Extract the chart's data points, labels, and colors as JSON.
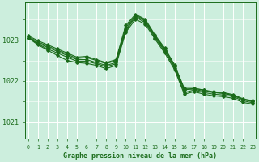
{
  "bg_color": "#cceedd",
  "plot_bg_color": "#cceedd",
  "line_color": "#1a6b1a",
  "grid_color": "#ffffff",
  "xlabel": "Graphe pression niveau de la mer (hPa)",
  "xlabel_color": "#1a6b1a",
  "tick_color": "#1a6b1a",
  "ylim": [
    1020.6,
    1023.9
  ],
  "xlim": [
    -0.3,
    23.3
  ],
  "yticks": [
    1021,
    1022,
    1023
  ],
  "xtick_labels": [
    "0",
    "1",
    "2",
    "3",
    "4",
    "5",
    "6",
    "7",
    "8",
    "9",
    "10",
    "11",
    "12",
    "13",
    "14",
    "15",
    "16",
    "17",
    "18",
    "19",
    "20",
    "21",
    "22",
    "23"
  ],
  "series": [
    [
      1023.05,
      1022.92,
      1022.82,
      1022.72,
      1022.62,
      1022.52,
      1022.52,
      1022.45,
      1022.38,
      1022.45,
      1023.25,
      1023.58,
      1023.45,
      1023.08,
      1022.75,
      1022.35,
      1021.78,
      1021.82,
      1021.78,
      1021.72,
      1021.7,
      1021.65,
      1021.55,
      1021.5
    ],
    [
      1023.05,
      1022.9,
      1022.78,
      1022.68,
      1022.58,
      1022.48,
      1022.48,
      1022.42,
      1022.35,
      1022.42,
      1023.22,
      1023.55,
      1023.42,
      1023.05,
      1022.72,
      1022.32,
      1021.72,
      1021.78,
      1021.72,
      1021.68,
      1021.66,
      1021.62,
      1021.52,
      1021.47
    ],
    [
      1023.08,
      1022.95,
      1022.85,
      1022.75,
      1022.65,
      1022.55,
      1022.57,
      1022.5,
      1022.42,
      1022.5,
      1023.3,
      1023.6,
      1023.48,
      1023.1,
      1022.78,
      1022.38,
      1021.8,
      1021.8,
      1021.75,
      1021.72,
      1021.7,
      1021.65,
      1021.55,
      1021.5
    ],
    [
      1023.1,
      1022.98,
      1022.88,
      1022.78,
      1022.68,
      1022.58,
      1022.6,
      1022.52,
      1022.45,
      1022.52,
      1023.35,
      1023.62,
      1023.5,
      1023.12,
      1022.8,
      1022.4,
      1021.82,
      1021.82,
      1021.78,
      1021.74,
      1021.72,
      1021.67,
      1021.57,
      1021.52
    ],
    [
      1023.05,
      1022.88,
      1022.75,
      1022.62,
      1022.5,
      1022.45,
      1022.43,
      1022.38,
      1022.3,
      1022.38,
      1023.18,
      1023.5,
      1023.38,
      1023.02,
      1022.68,
      1022.28,
      1021.68,
      1021.74,
      1021.68,
      1021.64,
      1021.62,
      1021.58,
      1021.48,
      1021.44
    ]
  ]
}
